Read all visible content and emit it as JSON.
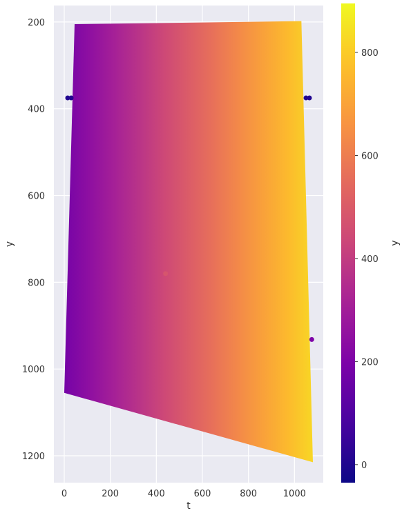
{
  "chart_data": {
    "type": "scatter",
    "title": "",
    "xlabel": "t",
    "ylabel": "y",
    "colorbar_label": "y",
    "x_ticks": [
      0,
      200,
      400,
      600,
      800,
      1000
    ],
    "y_ticks": [
      200,
      400,
      600,
      800,
      1000,
      1200
    ],
    "colorbar_ticks": [
      0,
      200,
      400,
      600,
      800
    ],
    "xlim": [
      -45,
      1125
    ],
    "ylim": [
      1262,
      162
    ],
    "y_axis_inverted": true,
    "color_range": [
      -35,
      895
    ],
    "colormap": "plasma",
    "grid": true,
    "background": "#eaeaf2",
    "point_cloud": {
      "description_shape": "dense quadrilateral point cloud",
      "corners": [
        {
          "t": 45,
          "y": 205
        },
        {
          "t": 1030,
          "y": 198
        },
        {
          "t": 1080,
          "y": 1215
        },
        {
          "t": 0,
          "y": 1055
        }
      ],
      "value_at_corners": [
        240,
        890,
        760,
        120
      ]
    },
    "isolated_points": [
      {
        "t": 15,
        "y": 375,
        "value": 5
      },
      {
        "t": 30,
        "y": 375,
        "value": 5
      },
      {
        "t": 1050,
        "y": 375,
        "value": 5
      },
      {
        "t": 1065,
        "y": 375,
        "value": 5
      },
      {
        "t": 1075,
        "y": 932,
        "value": 200
      },
      {
        "t": 440,
        "y": 780,
        "value": 480
      }
    ]
  }
}
